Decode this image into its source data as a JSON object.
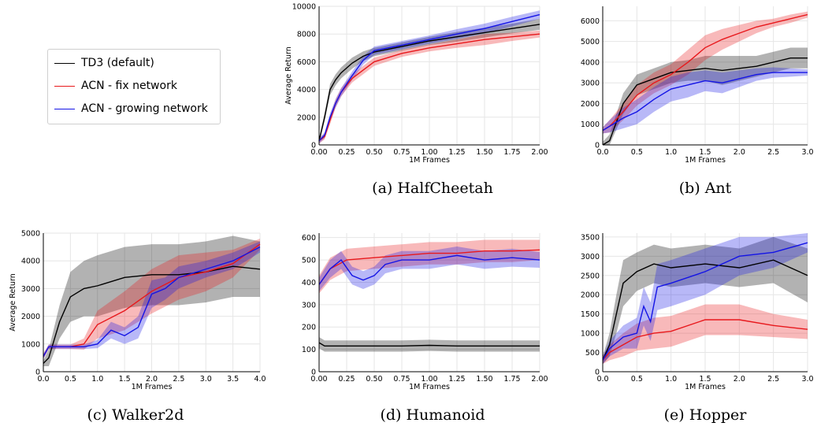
{
  "legend": {
    "items": [
      {
        "label": "TD3 (default)",
        "color": "#000000"
      },
      {
        "label": "ACN - fix network",
        "color": "#e8181c"
      },
      {
        "label": "ACN - growing network",
        "color": "#1414e6"
      }
    ]
  },
  "chart_data": [
    {
      "type": "line",
      "caption": "(a) HalfCheetah",
      "xlabel": "1M Frames",
      "ylabel": "Average Return",
      "xlim": [
        0,
        2.0
      ],
      "ylim": [
        0,
        10000
      ],
      "xticks": [
        0,
        0.25,
        0.5,
        0.75,
        1.0,
        1.25,
        1.5,
        1.75,
        2.0
      ],
      "xtick_labels": [
        "0.00",
        "0.25",
        "0.50",
        "0.75",
        "1.00",
        "1.25",
        "1.50",
        "1.75",
        "2.00"
      ],
      "yticks": [
        0,
        2000,
        4000,
        6000,
        8000,
        10000
      ],
      "ytick_labels": [
        "0",
        "2000",
        "4000",
        "6000",
        "8000",
        "10000"
      ],
      "grid": true,
      "series": [
        {
          "name": "TD3 (default)",
          "color": "#000000",
          "x": [
            0,
            0.05,
            0.1,
            0.15,
            0.2,
            0.3,
            0.4,
            0.5,
            0.75,
            1.0,
            1.25,
            1.5,
            1.75,
            2.0
          ],
          "y": [
            300,
            2000,
            4000,
            4700,
            5200,
            5900,
            6400,
            6700,
            7100,
            7500,
            7800,
            8100,
            8400,
            8700
          ],
          "band": [
            200,
            300,
            400,
            400,
            400,
            400,
            350,
            300,
            300,
            300,
            350,
            350,
            350,
            400
          ]
        },
        {
          "name": "ACN - fix network",
          "color": "#e8181c",
          "x": [
            0,
            0.05,
            0.1,
            0.15,
            0.2,
            0.3,
            0.4,
            0.5,
            0.75,
            1.0,
            1.25,
            1.5,
            1.75,
            2.0
          ],
          "y": [
            300,
            600,
            1800,
            3000,
            3800,
            4800,
            5400,
            6000,
            6600,
            7000,
            7300,
            7600,
            7800,
            8000
          ],
          "band": [
            200,
            200,
            300,
            300,
            300,
            300,
            300,
            300,
            250,
            250,
            300,
            400,
            300,
            250
          ]
        },
        {
          "name": "ACN - growing network",
          "color": "#1414e6",
          "x": [
            0,
            0.05,
            0.1,
            0.15,
            0.2,
            0.3,
            0.4,
            0.5,
            0.75,
            1.0,
            1.25,
            1.5,
            1.75,
            2.0
          ],
          "y": [
            300,
            700,
            2000,
            3000,
            3800,
            5000,
            6100,
            6800,
            7200,
            7600,
            8000,
            8400,
            8900,
            9400
          ],
          "band": [
            200,
            200,
            300,
            300,
            300,
            300,
            300,
            300,
            300,
            300,
            350,
            350,
            350,
            300
          ]
        }
      ]
    },
    {
      "type": "line",
      "caption": "(b) Ant",
      "xlabel": "1M Frames",
      "ylabel": "",
      "xlim": [
        0,
        3.0
      ],
      "ylim": [
        0,
        6700
      ],
      "xticks": [
        0,
        0.5,
        1.0,
        1.5,
        2.0,
        2.5,
        3.0
      ],
      "xtick_labels": [
        "0.0",
        "0.5",
        "1.0",
        "1.5",
        "2.0",
        "2.5",
        "3.0"
      ],
      "yticks": [
        0,
        1000,
        2000,
        3000,
        4000,
        5000,
        6000
      ],
      "ytick_labels": [
        "0",
        "1000",
        "2000",
        "3000",
        "4000",
        "5000",
        "6000"
      ],
      "grid": true,
      "series": [
        {
          "name": "TD3 (default)",
          "color": "#000000",
          "x": [
            0,
            0.1,
            0.3,
            0.5,
            0.75,
            1.0,
            1.25,
            1.5,
            1.75,
            2.0,
            2.25,
            2.5,
            2.75,
            3.0
          ],
          "y": [
            0,
            200,
            2000,
            2900,
            3200,
            3500,
            3600,
            3700,
            3600,
            3700,
            3800,
            4000,
            4200,
            4200
          ],
          "band": [
            150,
            300,
            500,
            500,
            500,
            500,
            500,
            600,
            700,
            600,
            500,
            500,
            500,
            500
          ]
        },
        {
          "name": "ACN - fix network",
          "color": "#e8181c",
          "x": [
            0,
            0.1,
            0.3,
            0.5,
            0.75,
            1.0,
            1.25,
            1.5,
            1.75,
            2.0,
            2.25,
            2.5,
            2.75,
            3.0
          ],
          "y": [
            700,
            900,
            1600,
            2400,
            3000,
            3400,
            4000,
            4700,
            5100,
            5400,
            5700,
            5900,
            6100,
            6300
          ],
          "band": [
            150,
            300,
            400,
            500,
            500,
            500,
            600,
            600,
            500,
            400,
            300,
            200,
            200,
            150
          ]
        },
        {
          "name": "ACN - growing network",
          "color": "#1414e6",
          "x": [
            0,
            0.1,
            0.3,
            0.5,
            0.75,
            1.0,
            1.25,
            1.5,
            1.75,
            2.0,
            2.25,
            2.5,
            2.75,
            3.0
          ],
          "y": [
            700,
            900,
            1300,
            1600,
            2200,
            2700,
            2900,
            3100,
            3000,
            3200,
            3400,
            3500,
            3500,
            3500
          ],
          "band": [
            150,
            300,
            500,
            600,
            600,
            600,
            600,
            500,
            500,
            400,
            300,
            250,
            200,
            150
          ]
        }
      ]
    },
    {
      "type": "line",
      "caption": "(c) Walker2d",
      "xlabel": "1M Frames",
      "ylabel": "Average Return",
      "xlim": [
        0,
        4.0
      ],
      "ylim": [
        0,
        5000
      ],
      "xticks": [
        0,
        0.5,
        1.0,
        1.5,
        2.0,
        2.5,
        3.0,
        3.5,
        4.0
      ],
      "xtick_labels": [
        "0.0",
        "0.5",
        "1.0",
        "1.5",
        "2.0",
        "2.5",
        "3.0",
        "3.5",
        "4.0"
      ],
      "yticks": [
        0,
        1000,
        2000,
        3000,
        4000,
        5000
      ],
      "ytick_labels": [
        "0",
        "1000",
        "2000",
        "3000",
        "4000",
        "5000"
      ],
      "grid": true,
      "series": [
        {
          "name": "TD3 (default)",
          "color": "#000000",
          "x": [
            0,
            0.1,
            0.3,
            0.5,
            0.75,
            1.0,
            1.5,
            2.0,
            2.5,
            3.0,
            3.5,
            4.0
          ],
          "y": [
            300,
            500,
            1800,
            2700,
            3000,
            3100,
            3400,
            3500,
            3500,
            3600,
            3800,
            3700
          ],
          "band": [
            100,
            300,
            600,
            900,
            1000,
            1100,
            1100,
            1100,
            1100,
            1100,
            1100,
            1000
          ]
        },
        {
          "name": "ACN - fix network",
          "color": "#e8181c",
          "x": [
            0,
            0.1,
            0.3,
            0.5,
            0.75,
            1.0,
            1.5,
            2.0,
            2.5,
            3.0,
            3.5,
            4.0
          ],
          "y": [
            550,
            900,
            900,
            900,
            1000,
            1700,
            2200,
            2900,
            3400,
            3600,
            3900,
            4600
          ],
          "band": [
            100,
            80,
            80,
            80,
            200,
            500,
            700,
            800,
            800,
            700,
            500,
            200
          ]
        },
        {
          "name": "ACN - growing network",
          "color": "#1414e6",
          "x": [
            0,
            0.1,
            0.3,
            0.5,
            0.75,
            1.0,
            1.25,
            1.5,
            1.75,
            2.0,
            2.25,
            2.5,
            3.0,
            3.5,
            4.0
          ],
          "y": [
            550,
            900,
            900,
            900,
            900,
            1000,
            1500,
            1300,
            1600,
            2800,
            3000,
            3400,
            3700,
            4000,
            4500
          ],
          "band": [
            100,
            80,
            80,
            80,
            80,
            150,
            300,
            300,
            400,
            500,
            400,
            400,
            300,
            300,
            200
          ]
        }
      ]
    },
    {
      "type": "line",
      "caption": "(d) Humanoid",
      "xlabel": "1M Frames",
      "ylabel": "",
      "xlim": [
        0,
        2.0
      ],
      "ylim": [
        0,
        620
      ],
      "xticks": [
        0,
        0.25,
        0.5,
        0.75,
        1.0,
        1.25,
        1.5,
        1.75,
        2.0
      ],
      "xtick_labels": [
        "0.00",
        "0.25",
        "0.50",
        "0.75",
        "1.00",
        "1.25",
        "1.50",
        "1.75",
        "2.00"
      ],
      "yticks": [
        0,
        100,
        200,
        300,
        400,
        500,
        600
      ],
      "ytick_labels": [
        "0",
        "100",
        "200",
        "300",
        "400",
        "500",
        "600"
      ],
      "grid": true,
      "series": [
        {
          "name": "TD3 (default)",
          "color": "#000000",
          "x": [
            0,
            0.05,
            0.25,
            0.5,
            0.75,
            1.0,
            1.25,
            1.5,
            1.75,
            2.0
          ],
          "y": [
            130,
            115,
            115,
            115,
            115,
            118,
            115,
            115,
            115,
            115
          ],
          "band": [
            25,
            25,
            25,
            25,
            25,
            25,
            25,
            25,
            25,
            25
          ]
        },
        {
          "name": "ACN - fix network",
          "color": "#e8181c",
          "x": [
            0,
            0.1,
            0.25,
            0.5,
            0.75,
            1.0,
            1.25,
            1.5,
            1.75,
            2.0
          ],
          "y": [
            390,
            460,
            500,
            510,
            520,
            530,
            530,
            540,
            540,
            545
          ],
          "band": [
            40,
            50,
            50,
            50,
            50,
            50,
            50,
            50,
            50,
            45
          ]
        },
        {
          "name": "ACN - growing network",
          "color": "#1414e6",
          "x": [
            0,
            0.1,
            0.2,
            0.3,
            0.4,
            0.5,
            0.6,
            0.75,
            1.0,
            1.25,
            1.5,
            1.75,
            2.0
          ],
          "y": [
            390,
            460,
            500,
            430,
            410,
            430,
            480,
            500,
            500,
            520,
            500,
            510,
            500
          ],
          "band": [
            30,
            40,
            40,
            40,
            40,
            40,
            40,
            40,
            40,
            40,
            40,
            40,
            35
          ]
        }
      ]
    },
    {
      "type": "line",
      "caption": "(e) Hopper",
      "xlabel": "1M Frames",
      "ylabel": "",
      "xlim": [
        0,
        3.0
      ],
      "ylim": [
        0,
        3600
      ],
      "xticks": [
        0,
        0.5,
        1.0,
        1.5,
        2.0,
        2.5,
        3.0
      ],
      "xtick_labels": [
        "0.0",
        "0.5",
        "1.0",
        "1.5",
        "2.0",
        "2.5",
        "3.0"
      ],
      "yticks": [
        0,
        500,
        1000,
        1500,
        2000,
        2500,
        3000,
        3500
      ],
      "ytick_labels": [
        "0",
        "500",
        "1000",
        "1500",
        "2000",
        "2500",
        "3000",
        "3500"
      ],
      "grid": true,
      "series": [
        {
          "name": "TD3 (default)",
          "color": "#000000",
          "x": [
            0,
            0.1,
            0.2,
            0.3,
            0.5,
            0.75,
            1.0,
            1.5,
            2.0,
            2.5,
            3.0
          ],
          "y": [
            300,
            700,
            1500,
            2300,
            2600,
            2800,
            2700,
            2800,
            2700,
            2900,
            2500
          ],
          "band": [
            100,
            300,
            500,
            600,
            500,
            500,
            500,
            500,
            500,
            600,
            700
          ]
        },
        {
          "name": "ACN - fix network",
          "color": "#e8181c",
          "x": [
            0,
            0.1,
            0.3,
            0.5,
            0.75,
            1.0,
            1.5,
            2.0,
            2.5,
            3.0
          ],
          "y": [
            300,
            500,
            700,
            900,
            1000,
            1050,
            1350,
            1350,
            1200,
            1100
          ],
          "band": [
            100,
            200,
            300,
            350,
            400,
            400,
            400,
            400,
            300,
            250
          ]
        },
        {
          "name": "ACN - growing network",
          "color": "#1414e6",
          "x": [
            0,
            0.1,
            0.3,
            0.5,
            0.6,
            0.7,
            0.8,
            1.0,
            1.5,
            2.0,
            2.5,
            3.0
          ],
          "y": [
            300,
            600,
            900,
            1000,
            1700,
            1300,
            2200,
            2300,
            2600,
            3000,
            3100,
            3350
          ],
          "band": [
            100,
            200,
            300,
            400,
            500,
            500,
            600,
            600,
            600,
            500,
            400,
            250
          ]
        }
      ]
    }
  ]
}
